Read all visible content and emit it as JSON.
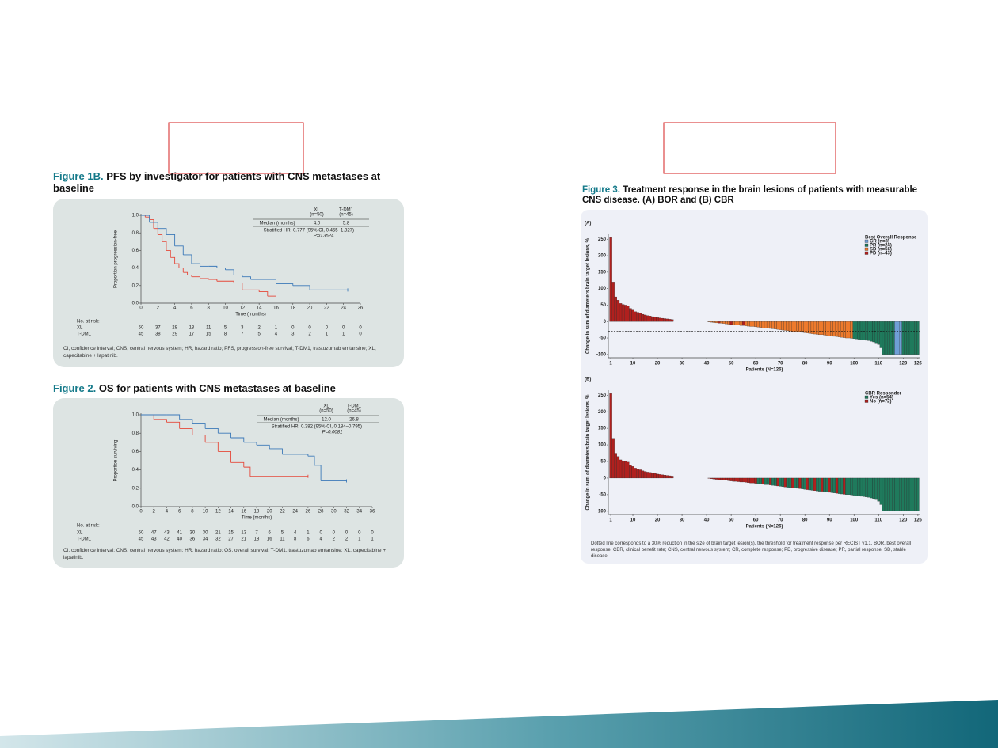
{
  "figures": [
    {
      "label": "Figure 1B.",
      "title": "PFS by investigator for patients with CNS metastases at baseline",
      "footnote": "CI, confidence interval; CNS, central nervous system; HR, hazard ratio; PFS, progression-free survival; T-DM1, trastuzumab emtansine; XL, capecitabine + lapatinib."
    },
    {
      "label": "Figure 2.",
      "title": "OS for patients with CNS metastases at baseline",
      "footnote": "CI, confidence interval; CNS, central nervous system; HR, hazard ratio; OS, overall survival; T-DM1, trastuzumab emtansine; XL, capecitabine + lapatinib."
    },
    {
      "label": "Figure 3.",
      "title": "Treatment response in the brain lesions of patients with measurable CNS disease. (A) BOR and (B) CBR",
      "footnote": "Dotted line corresponds to a 30% reduction in the size of brain target lesion(s), the threshold for treatment response per RECIST v1.1. BOR, best overall response; CBR, clinical benefit rate; CNS, central nervous system; CR, complete response; PD, progressive disease; PR, partial response; SD, stable disease."
    }
  ],
  "chart_data": [
    {
      "type": "line",
      "step": true,
      "xlabel": "Time (months)",
      "ylabel": "Proportion progression-free",
      "xlim": [
        0,
        26
      ],
      "xticks": [
        0,
        2,
        4,
        6,
        8,
        10,
        12,
        14,
        16,
        18,
        20,
        22,
        24,
        26
      ],
      "ylim": [
        0,
        1
      ],
      "yticks": [
        {
          "value": 0,
          "label": "0.0"
        },
        0.2,
        0.4,
        0.6,
        0.8,
        {
          "value": 1,
          "label": "1.0"
        }
      ],
      "median_label": "Median (months)",
      "hr_text": "Stratified HR, 0.777 (95% CI, 0.455–1.327)",
      "p_text": "P=0.3524",
      "at_risk_title": "No. at risk:",
      "series": [
        {
          "name": "XL",
          "n_label": "(n=50)",
          "median": "4.0",
          "color": "#e5483a",
          "x": [
            0,
            0.5,
            1,
            1.5,
            2,
            2.5,
            3,
            3.5,
            4,
            4.5,
            5,
            5.5,
            6,
            7,
            8,
            9,
            11,
            12,
            14,
            15,
            16
          ],
          "y": [
            1,
            0.98,
            0.95,
            0.85,
            0.78,
            0.7,
            0.6,
            0.52,
            0.45,
            0.4,
            0.35,
            0.32,
            0.3,
            0.28,
            0.27,
            0.25,
            0.23,
            0.15,
            0.13,
            0.08,
            0.08
          ],
          "at_risk": [
            50,
            37,
            28,
            13,
            11,
            5,
            3,
            2,
            1,
            0,
            0,
            0,
            0,
            0
          ]
        },
        {
          "name": "T-DM1",
          "n_label": "(n=45)",
          "median": "5.8",
          "color": "#3b78b8",
          "x": [
            0,
            1,
            2,
            3,
            4,
            5,
            6,
            7,
            8,
            9,
            10,
            11,
            12,
            13,
            16,
            18,
            20,
            24.5
          ],
          "y": [
            1,
            0.92,
            0.85,
            0.78,
            0.65,
            0.55,
            0.45,
            0.42,
            0.42,
            0.4,
            0.38,
            0.32,
            0.3,
            0.27,
            0.22,
            0.2,
            0.15,
            0.15
          ],
          "at_risk": [
            45,
            38,
            29,
            17,
            15,
            8,
            7,
            5,
            4,
            3,
            2,
            1,
            1,
            0
          ]
        }
      ]
    },
    {
      "type": "line",
      "step": true,
      "xlabel": "Time (months)",
      "ylabel": "Proportion surviving",
      "xlim": [
        0,
        36
      ],
      "xticks": [
        0,
        2,
        4,
        6,
        8,
        10,
        12,
        14,
        16,
        18,
        20,
        22,
        24,
        26,
        28,
        30,
        32,
        34,
        36
      ],
      "ylim": [
        0,
        1
      ],
      "yticks": [
        {
          "value": 0,
          "label": "0.0"
        },
        0.2,
        0.4,
        0.6,
        0.8,
        {
          "value": 1,
          "label": "1.0"
        }
      ],
      "median_label": "Median (months)",
      "hr_text": "Stratified HR, 0.382 (95% CI, 0.184–0.795)",
      "p_text": "P=0.0081",
      "at_risk_title": "No. at risk:",
      "series": [
        {
          "name": "XL",
          "n_label": "(n=50)",
          "median": "12.0",
          "color": "#e5483a",
          "x": [
            0,
            2,
            4,
            6,
            8,
            10,
            12,
            14,
            16,
            17,
            26
          ],
          "y": [
            1,
            0.95,
            0.92,
            0.85,
            0.78,
            0.7,
            0.6,
            0.48,
            0.43,
            0.33,
            0.33
          ],
          "at_risk": [
            50,
            47,
            43,
            41,
            30,
            30,
            21,
            15,
            13,
            7,
            6,
            5,
            4,
            1,
            0,
            0,
            0,
            0,
            0
          ]
        },
        {
          "name": "T-DM1",
          "n_label": "(n=45)",
          "median": "26.8",
          "color": "#3b78b8",
          "x": [
            0,
            4,
            6,
            8,
            10,
            12,
            14,
            16,
            18,
            20,
            22,
            26,
            27,
            28,
            32
          ],
          "y": [
            1,
            1,
            0.95,
            0.9,
            0.85,
            0.8,
            0.75,
            0.7,
            0.67,
            0.63,
            0.57,
            0.55,
            0.45,
            0.28,
            0.28
          ],
          "at_risk": [
            45,
            43,
            42,
            40,
            36,
            34,
            32,
            27,
            21,
            18,
            16,
            11,
            8,
            6,
            4,
            2,
            2,
            1,
            1
          ]
        }
      ]
    },
    {
      "type": "bar",
      "panel_label": "(A)",
      "legend_title": "Best Overall Response",
      "xlabel": "Patients (N=126)",
      "ylabel": "Change in sum of diameters brain target lesions, %",
      "xlim": [
        0,
        127
      ],
      "xticks": [
        1,
        10,
        20,
        30,
        40,
        50,
        60,
        70,
        80,
        90,
        100,
        110,
        120,
        126
      ],
      "ylim": [
        -110,
        265
      ],
      "yticks": [
        -100,
        -50,
        0,
        50,
        100,
        150,
        200,
        250
      ],
      "threshold": -30,
      "series": [
        {
          "name": "CR (n=3)",
          "color": "#6f9fd6"
        },
        {
          "name": "PR (n=24)",
          "color": "#1f7a5c"
        },
        {
          "name": "SD (n=56)",
          "color": "#ee7a2c"
        },
        {
          "name": "PD (n=43)",
          "color": "#b0201e"
        }
      ],
      "values": [
        255,
        120,
        75,
        65,
        55,
        52,
        50,
        48,
        40,
        35,
        30,
        28,
        25,
        22,
        20,
        18,
        17,
        15,
        14,
        12,
        11,
        10,
        9,
        8,
        7,
        6,
        0,
        0,
        0,
        0,
        0,
        0,
        0,
        0,
        0,
        0,
        0,
        0,
        0,
        0,
        -1,
        -2,
        -3,
        -4,
        -5,
        -5,
        -6,
        -7,
        -8,
        -9,
        -10,
        -10,
        -11,
        -12,
        -12,
        -13,
        -14,
        -15,
        -15,
        -16,
        -17,
        -18,
        -19,
        -20,
        -20,
        -21,
        -22,
        -23,
        -24,
        -25,
        -26,
        -27,
        -28,
        -29,
        -30,
        -30,
        -31,
        -32,
        -33,
        -34,
        -35,
        -36,
        -37,
        -38,
        -39,
        -40,
        -40,
        -41,
        -42,
        -43,
        -44,
        -45,
        -46,
        -47,
        -48,
        -49,
        -50,
        -50,
        -51,
        -52,
        -53,
        -54,
        -55,
        -56,
        -57,
        -58,
        -60,
        -62,
        -65,
        -70,
        -80,
        -100,
        -100,
        -100,
        -100,
        -100,
        -100,
        -100,
        -100,
        -100,
        -100,
        -100,
        -100,
        -100,
        -100,
        -100
      ],
      "bar_series": [
        3,
        3,
        3,
        3,
        3,
        3,
        3,
        3,
        3,
        3,
        3,
        3,
        3,
        3,
        3,
        3,
        3,
        3,
        3,
        3,
        3,
        3,
        3,
        3,
        3,
        3,
        3,
        3,
        3,
        3,
        3,
        3,
        3,
        3,
        3,
        3,
        3,
        3,
        3,
        3,
        2,
        2,
        2,
        2,
        3,
        2,
        2,
        2,
        2,
        3,
        2,
        2,
        2,
        2,
        3,
        2,
        2,
        2,
        2,
        2,
        2,
        2,
        2,
        2,
        2,
        2,
        2,
        2,
        2,
        2,
        2,
        2,
        2,
        2,
        2,
        2,
        2,
        2,
        2,
        2,
        2,
        2,
        2,
        2,
        2,
        2,
        2,
        2,
        2,
        2,
        2,
        2,
        2,
        2,
        2,
        2,
        2,
        2,
        2,
        1,
        1,
        1,
        1,
        1,
        1,
        1,
        1,
        1,
        1,
        1,
        1,
        1,
        1,
        1,
        1,
        1,
        0,
        0,
        0,
        1,
        1,
        1,
        1,
        1,
        1,
        1
      ]
    },
    {
      "type": "bar",
      "panel_label": "(B)",
      "legend_title": "CBR Responder",
      "xlabel": "Patients (N=126)",
      "ylabel": "Change in sum of diameters brain target lesions, %",
      "xlim": [
        0,
        127
      ],
      "xticks": [
        1,
        10,
        20,
        30,
        40,
        50,
        60,
        70,
        80,
        90,
        100,
        110,
        120,
        126
      ],
      "ylim": [
        -110,
        265
      ],
      "yticks": [
        -100,
        -50,
        0,
        50,
        100,
        150,
        200,
        250
      ],
      "threshold": -30,
      "series": [
        {
          "name": "Yes (n=54)",
          "color": "#1f7a5c"
        },
        {
          "name": "No (n=72)",
          "color": "#b0201e"
        }
      ],
      "values": [
        255,
        120,
        75,
        65,
        55,
        52,
        50,
        48,
        40,
        35,
        30,
        28,
        25,
        22,
        20,
        18,
        17,
        15,
        14,
        12,
        11,
        10,
        9,
        8,
        7,
        6,
        0,
        0,
        0,
        0,
        0,
        0,
        0,
        0,
        0,
        0,
        0,
        0,
        0,
        0,
        -1,
        -2,
        -3,
        -4,
        -5,
        -5,
        -6,
        -7,
        -8,
        -9,
        -10,
        -10,
        -11,
        -12,
        -12,
        -13,
        -14,
        -15,
        -15,
        -16,
        -17,
        -18,
        -19,
        -20,
        -20,
        -21,
        -22,
        -23,
        -24,
        -25,
        -26,
        -27,
        -28,
        -29,
        -30,
        -30,
        -31,
        -32,
        -33,
        -34,
        -35,
        -36,
        -37,
        -38,
        -39,
        -40,
        -40,
        -41,
        -42,
        -43,
        -44,
        -45,
        -46,
        -47,
        -48,
        -49,
        -50,
        -50,
        -51,
        -52,
        -53,
        -54,
        -55,
        -56,
        -57,
        -58,
        -60,
        -62,
        -65,
        -70,
        -80,
        -100,
        -100,
        -100,
        -100,
        -100,
        -100,
        -100,
        -100,
        -100,
        -100,
        -100,
        -100,
        -100,
        -100,
        -100
      ],
      "bar_series": [
        1,
        1,
        1,
        1,
        1,
        1,
        1,
        1,
        1,
        1,
        1,
        1,
        1,
        1,
        1,
        1,
        1,
        1,
        1,
        1,
        1,
        1,
        1,
        1,
        1,
        1,
        1,
        1,
        1,
        1,
        1,
        1,
        1,
        1,
        1,
        1,
        1,
        1,
        1,
        1,
        1,
        1,
        1,
        1,
        1,
        1,
        1,
        1,
        1,
        1,
        1,
        1,
        1,
        1,
        1,
        1,
        1,
        1,
        1,
        1,
        0,
        0,
        1,
        0,
        0,
        1,
        0,
        0,
        1,
        0,
        0,
        1,
        0,
        0,
        1,
        0,
        0,
        1,
        0,
        0,
        1,
        0,
        0,
        1,
        0,
        0,
        1,
        0,
        0,
        1,
        0,
        0,
        1,
        0,
        0,
        1,
        0,
        0,
        0,
        0,
        0,
        0,
        0,
        0,
        0,
        0,
        0,
        0,
        0,
        0,
        0,
        0,
        0,
        0,
        0,
        0,
        0,
        0,
        0,
        0,
        0,
        0,
        0,
        0,
        0,
        0
      ]
    }
  ]
}
